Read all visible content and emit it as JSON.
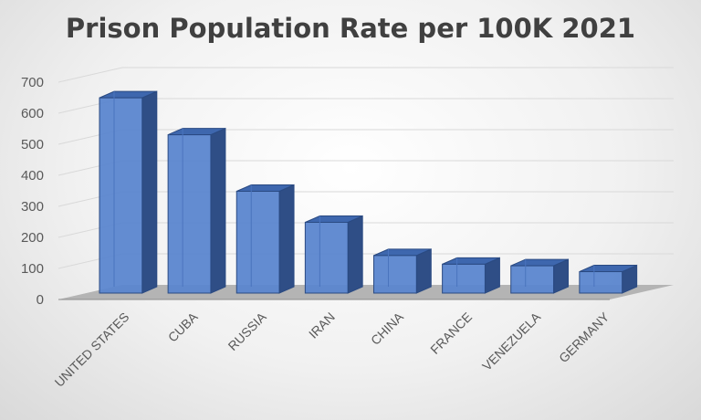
{
  "chart_data": {
    "type": "bar",
    "title": "Prison Population Rate per 100K 2021",
    "xlabel": "",
    "ylabel": "",
    "categories": [
      "UNITED STATES",
      "CUBA",
      "RUSSIA",
      "IRAN",
      "CHINA",
      "FRANCE",
      "VENEZUELA",
      "GERMANY"
    ],
    "values": [
      629,
      510,
      328,
      228,
      121,
      93,
      88,
      69
    ],
    "ylim": [
      0,
      700
    ],
    "yticks": [
      0,
      100,
      200,
      300,
      400,
      500,
      600,
      700
    ],
    "grid": true,
    "legend": "none",
    "colors": {
      "bar_front": "#5B86CF",
      "bar_side": "#2F4E86",
      "bar_top": "#3E67AE",
      "edge": "#2A4A82",
      "floor": "#B4B4B4",
      "grid": "#D9D9D9"
    }
  }
}
